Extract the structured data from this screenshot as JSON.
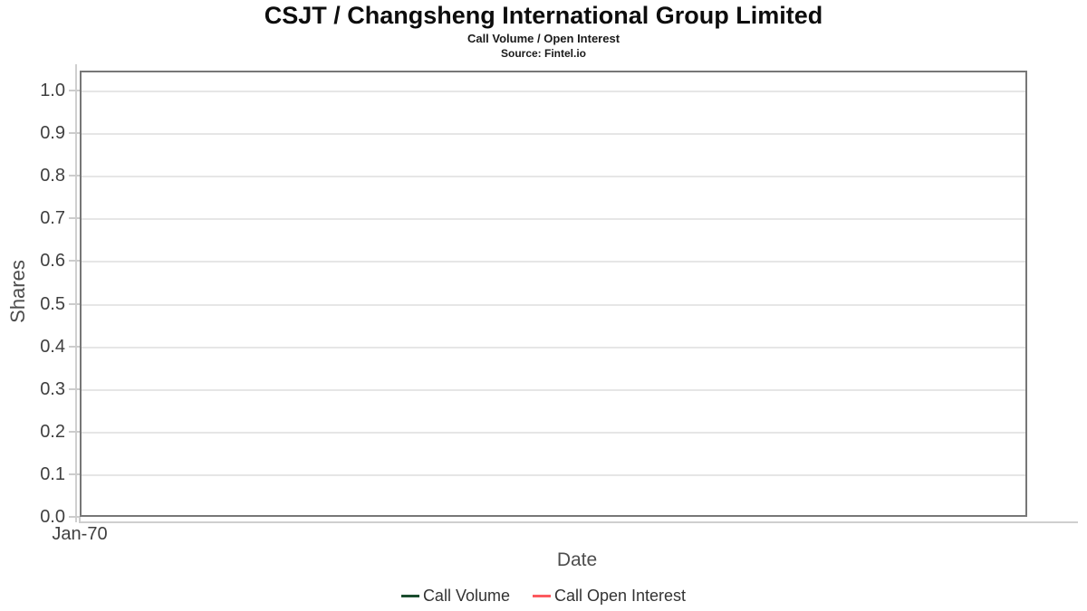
{
  "header": {
    "title": "CSJT / Changsheng International Group Limited",
    "subtitle": "Call Volume / Open Interest",
    "source": "Source: Fintel.io"
  },
  "chart_data": {
    "type": "line",
    "title": "CSJT / Changsheng International Group Limited",
    "subtitle": "Call Volume / Open Interest",
    "source": "Source: Fintel.io",
    "xlabel": "Date",
    "ylabel": "Shares",
    "ylim": [
      0.0,
      1.05
    ],
    "ytick_labels": [
      "0.0",
      "0.1",
      "0.2",
      "0.3",
      "0.4",
      "0.5",
      "0.6",
      "0.7",
      "0.8",
      "0.9",
      "1.0"
    ],
    "ytick_values": [
      0.0,
      0.1,
      0.2,
      0.3,
      0.4,
      0.5,
      0.6,
      0.7,
      0.8,
      0.9,
      1.0
    ],
    "xtick_labels": [
      "Jan-70"
    ],
    "grid": "horizontal",
    "legend_position": "bottom",
    "series": [
      {
        "name": "Call Volume",
        "color": "#1a4d2e",
        "x": [],
        "values": []
      },
      {
        "name": "Call Open Interest",
        "color": "#fc5a5f",
        "x": [],
        "values": []
      }
    ]
  }
}
